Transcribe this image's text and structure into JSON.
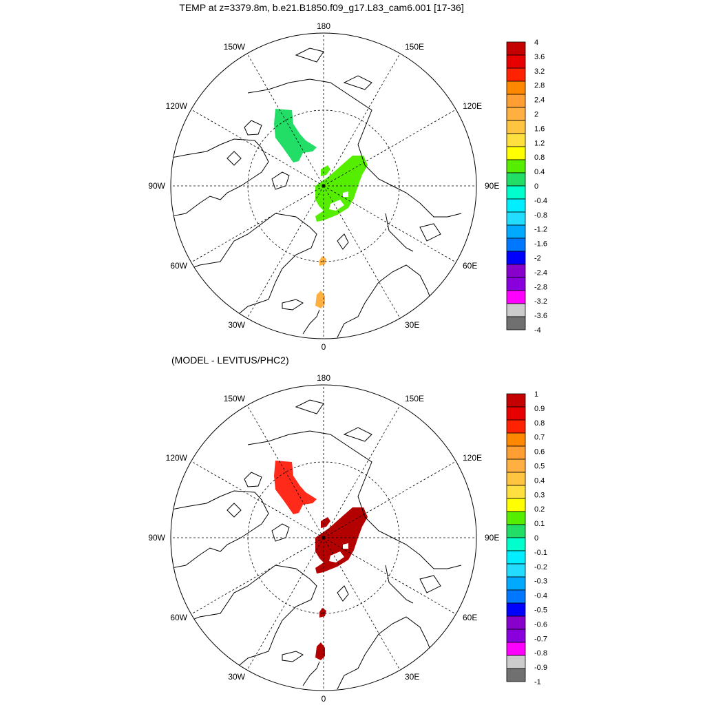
{
  "panels": [
    {
      "title": "TEMP at z=3379.8m, b.e21.B1850.f09_g17.L83_cam6.001 [17-36]",
      "lon_labels": {
        "top": "180",
        "bottom": "0",
        "left": "90W",
        "right": "90E",
        "ul1": "150W",
        "ul2": "120W",
        "ur1": "150E",
        "ur2": "120E",
        "ll1": "60W",
        "ll2": "30W",
        "lr1": "60E",
        "lr2": "30E"
      },
      "colorbar": {
        "labels": [
          "4",
          "3.6",
          "3.2",
          "2.8",
          "2.4",
          "2",
          "1.6",
          "1.2",
          "0.8",
          "0.4",
          "0",
          "-0.4",
          "-0.8",
          "-1.2",
          "-1.6",
          "-2",
          "-2.4",
          "-2.8",
          "-3.2",
          "-3.6",
          "-4"
        ],
        "colors": [
          "#c40000",
          "#e80000",
          "#ff2200",
          "#ff8800",
          "#ff9f33",
          "#ffb040",
          "#ffc440",
          "#ffe040",
          "#ffff00",
          "#55ee00",
          "#22dd66",
          "#00ffcc",
          "#00eeff",
          "#22ddff",
          "#00aaff",
          "#0077ff",
          "#0000ff",
          "#8800cc",
          "#8a00dd",
          "#ff00ff",
          "#cccccc",
          "#707070"
        ]
      },
      "anomalies": [
        {
          "region": "canada-basin",
          "color": "#22dd66",
          "value_class": "0 to 0.4"
        },
        {
          "region": "eurasian-basin",
          "color": "#55ee00",
          "value_class": "0.4 to 0.8"
        },
        {
          "region": "small-eurasian",
          "color": "#55ee00",
          "value_class": "0.4 to 0.8"
        },
        {
          "region": "fram-strait",
          "color": "#ffb040",
          "value_class": "1.6 to 2"
        },
        {
          "region": "greenland-sea",
          "color": "#ffb040",
          "value_class": "1.6 to 2"
        }
      ]
    },
    {
      "title": "(MODEL - LEVITUS/PHC2)",
      "lon_labels": {
        "top": "180",
        "bottom": "0",
        "left": "90W",
        "right": "90E",
        "ul1": "150W",
        "ul2": "120W",
        "ur1": "150E",
        "ur2": "120E",
        "ll1": "60W",
        "ll2": "30W",
        "lr1": "60E",
        "lr2": "30E"
      },
      "colorbar": {
        "labels": [
          "1",
          "0.9",
          "0.8",
          "0.7",
          "0.6",
          "0.5",
          "0.4",
          "0.3",
          "0.2",
          "0.1",
          "0",
          "-0.1",
          "-0.2",
          "-0.3",
          "-0.4",
          "-0.5",
          "-0.6",
          "-0.7",
          "-0.8",
          "-0.9",
          "-1"
        ],
        "colors": [
          "#c40000",
          "#e80000",
          "#ff2200",
          "#ff8800",
          "#ff9f33",
          "#ffb040",
          "#ffc440",
          "#ffe040",
          "#ffff00",
          "#55ee00",
          "#22dd66",
          "#00ffcc",
          "#00eeff",
          "#22ddff",
          "#00aaff",
          "#0077ff",
          "#0000ff",
          "#8800cc",
          "#8a00dd",
          "#ff00ff",
          "#cccccc",
          "#707070"
        ]
      },
      "anomalies": [
        {
          "region": "canada-basin",
          "color": "#ff2a1a",
          "value_class": "0.7 to 0.8"
        },
        {
          "region": "eurasian-basin",
          "color": "#b30000",
          "value_class": "> 0.9"
        },
        {
          "region": "small-eurasian",
          "color": "#b30000",
          "value_class": "> 0.9"
        },
        {
          "region": "fram-strait",
          "color": "#b30000",
          "value_class": "> 0.9"
        },
        {
          "region": "greenland-sea",
          "color": "#b30000",
          "value_class": "> 0.9"
        }
      ]
    }
  ]
}
